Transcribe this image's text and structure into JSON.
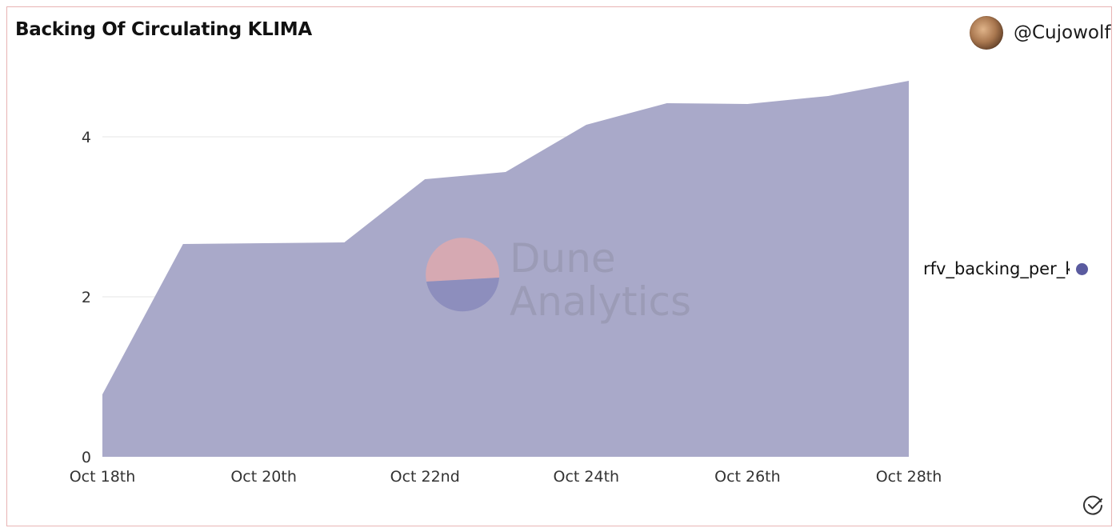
{
  "header": {
    "title": "Backing Of Circulating KLIMA",
    "author": "@Cujowolf"
  },
  "watermark": {
    "line1": "Dune",
    "line2": "Analytics"
  },
  "colors": {
    "area_fill": "#a9a9c9",
    "legend_dot": "#5a5b9f",
    "gridline": "#e6e6e6",
    "card_border": "#e8b4b4"
  },
  "icons": {
    "avatar": "avatar-icon",
    "status": "check-circle-icon"
  },
  "chart_data": {
    "type": "area",
    "title": "Backing Of Circulating KLIMA",
    "xlabel": "",
    "ylabel": "",
    "x": [
      "2021-10-18",
      "2021-10-19",
      "2021-10-20",
      "2021-10-21",
      "2021-10-22",
      "2021-10-23",
      "2021-10-24",
      "2021-10-25",
      "2021-10-26",
      "2021-10-27",
      "2021-10-28"
    ],
    "x_tick_labels": [
      "Oct 18th",
      "Oct 20th",
      "Oct 22nd",
      "Oct 24th",
      "Oct 26th",
      "Oct 28th"
    ],
    "x_tick_values": [
      "2021-10-18",
      "2021-10-20",
      "2021-10-22",
      "2021-10-24",
      "2021-10-26",
      "2021-10-28"
    ],
    "y_tick_labels": [
      "0",
      "2",
      "4"
    ],
    "y_tick_values": [
      0,
      2,
      4
    ],
    "ylim": [
      0,
      4.85
    ],
    "grid": true,
    "legend_position": "right",
    "series": [
      {
        "name": "rfv_backing_per_k",
        "values": [
          0.78,
          2.66,
          2.67,
          2.68,
          3.47,
          3.56,
          4.15,
          4.42,
          4.41,
          4.51,
          4.7
        ]
      }
    ]
  }
}
